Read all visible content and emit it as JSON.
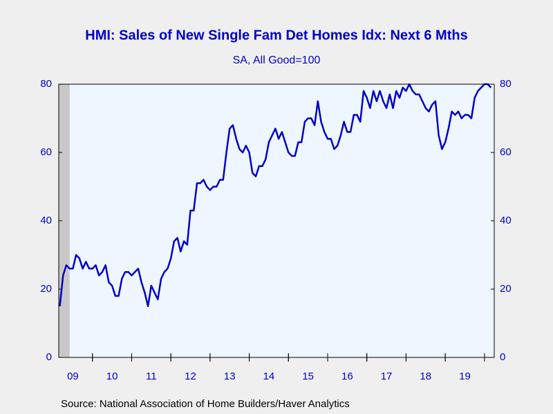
{
  "chart_data": {
    "type": "line",
    "title": "HMI: Sales of New Single Fam Det Homes Idx: Next 6 Mths",
    "subtitle": "SA, All Good=100",
    "source": "Source:  National Association of Home Builders/Haver Analytics",
    "x": [
      2009.167,
      2009.25,
      2009.333,
      2009.417,
      2009.5,
      2009.583,
      2009.667,
      2009.75,
      2009.833,
      2009.917,
      2010,
      2010.083,
      2010.167,
      2010.25,
      2010.333,
      2010.417,
      2010.5,
      2010.583,
      2010.667,
      2010.75,
      2010.833,
      2010.917,
      2011,
      2011.083,
      2011.167,
      2011.25,
      2011.333,
      2011.417,
      2011.5,
      2011.583,
      2011.667,
      2011.75,
      2011.833,
      2011.917,
      2012,
      2012.083,
      2012.167,
      2012.25,
      2012.333,
      2012.417,
      2012.5,
      2012.583,
      2012.667,
      2012.75,
      2012.833,
      2012.917,
      2013,
      2013.083,
      2013.167,
      2013.25,
      2013.333,
      2013.417,
      2013.5,
      2013.583,
      2013.667,
      2013.75,
      2013.833,
      2013.917,
      2014,
      2014.083,
      2014.167,
      2014.25,
      2014.333,
      2014.417,
      2014.5,
      2014.583,
      2014.667,
      2014.75,
      2014.833,
      2014.917,
      2015,
      2015.083,
      2015.167,
      2015.25,
      2015.333,
      2015.417,
      2015.5,
      2015.583,
      2015.667,
      2015.75,
      2015.833,
      2015.917,
      2016,
      2016.083,
      2016.167,
      2016.25,
      2016.333,
      2016.417,
      2016.5,
      2016.583,
      2016.667,
      2016.75,
      2016.833,
      2016.917,
      2017,
      2017.083,
      2017.167,
      2017.25,
      2017.333,
      2017.417,
      2017.5,
      2017.583,
      2017.667,
      2017.75,
      2017.833,
      2017.917,
      2018,
      2018.083,
      2018.167,
      2018.25,
      2018.333,
      2018.417,
      2018.5,
      2018.583,
      2018.667,
      2018.75,
      2018.833,
      2018.917,
      2019,
      2019.083,
      2019.167,
      2019.25,
      2019.333,
      2019.417,
      2019.5,
      2019.583,
      2019.667,
      2019.75,
      2019.833,
      2019.917,
      2020,
      2020.083,
      2020.167
    ],
    "series": [
      {
        "name": "HMI Next 6 Months",
        "color": "#0000c8",
        "values": [
          15,
          24,
          27,
          26,
          26,
          30,
          29,
          26,
          28,
          26,
          26,
          27,
          24,
          25,
          27,
          22,
          21,
          18,
          18,
          23,
          25,
          25,
          24,
          25,
          26,
          22,
          19,
          15,
          21,
          19,
          17,
          23,
          25,
          26,
          29,
          34,
          35,
          31,
          34,
          33,
          43,
          43,
          51,
          51,
          52,
          50,
          49,
          50,
          50,
          52,
          52,
          60,
          67,
          68,
          64,
          61,
          60,
          62,
          60,
          54,
          53,
          56,
          56,
          58,
          63,
          65,
          67,
          64,
          66,
          63,
          60,
          59,
          59,
          63,
          63,
          69,
          70,
          70,
          68,
          75,
          69,
          66,
          64,
          64,
          61,
          62,
          65,
          69,
          66,
          66,
          71,
          71,
          69,
          78,
          76,
          73,
          78,
          75,
          78,
          75,
          73,
          77,
          73,
          78,
          76,
          79,
          78,
          80,
          78,
          77,
          77,
          75,
          73,
          72,
          74,
          75,
          65,
          61,
          63,
          67,
          72,
          71,
          72,
          70,
          71,
          71,
          70,
          76,
          78,
          79,
          80,
          80,
          79
        ]
      }
    ],
    "xlim": [
      2009.14,
      2020.25
    ],
    "xticks": [
      {
        "value": 2009.5,
        "label": "09"
      },
      {
        "value": 2010.5,
        "label": "10"
      },
      {
        "value": 2011.5,
        "label": "11"
      },
      {
        "value": 2012.5,
        "label": "12"
      },
      {
        "value": 2013.5,
        "label": "13"
      },
      {
        "value": 2014.5,
        "label": "14"
      },
      {
        "value": 2015.5,
        "label": "15"
      },
      {
        "value": 2016.5,
        "label": "16"
      },
      {
        "value": 2017.5,
        "label": "17"
      },
      {
        "value": 2018.5,
        "label": "18"
      },
      {
        "value": 2019.5,
        "label": "19"
      }
    ],
    "ylim": [
      0,
      80
    ],
    "yticks": [
      0,
      20,
      40,
      60,
      80
    ],
    "y2lim": [
      0,
      80
    ],
    "y2ticks": [
      0,
      20,
      40,
      60,
      80
    ],
    "shaded_periods": [
      [
        2009.0,
        2009.417
      ]
    ],
    "grid": false
  }
}
